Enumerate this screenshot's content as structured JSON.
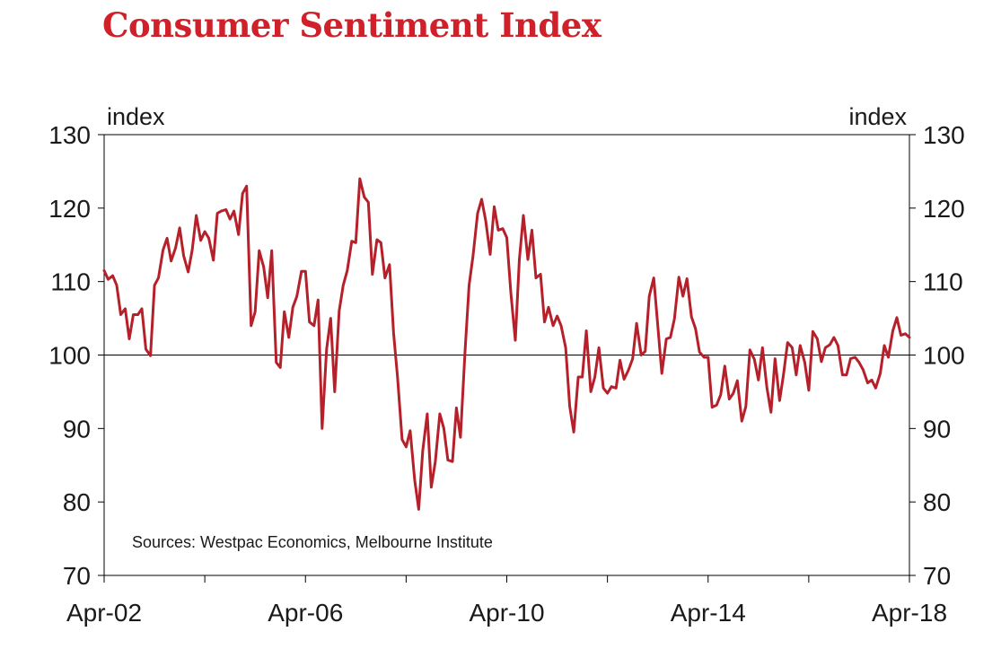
{
  "title": "Consumer Sentiment Index",
  "colors": {
    "title": "#d0202a",
    "line": "#b5202a",
    "axis": "#000000"
  },
  "chart_data": {
    "type": "line",
    "title": "Consumer Sentiment Index",
    "ylabel_left": "index",
    "ylabel_right": "index",
    "ylim": [
      70,
      130
    ],
    "yticks": [
      "130",
      "120",
      "110",
      "100",
      "90",
      "80",
      "70"
    ],
    "ytick_values": [
      130,
      120,
      110,
      100,
      90,
      80,
      70
    ],
    "x_range": [
      2002.25,
      2018.25
    ],
    "xtick_labels": [
      "Apr-02",
      "Apr-06",
      "Apr-10",
      "Apr-14",
      "Apr-18"
    ],
    "xtick_positions": [
      2002.25,
      2006.25,
      2010.25,
      2014.25,
      2018.25
    ],
    "minor_xtick_positions": [
      2004.25,
      2008.25,
      2012.25,
      2016.25
    ],
    "reference_line": 100,
    "annotation": "Sources: Westpac Economics, Melbourne Institute",
    "series": [
      {
        "name": "Consumer Sentiment Index",
        "points": [
          [
            2002.25,
            111.5
          ],
          [
            2002.33,
            110.3
          ],
          [
            2002.42,
            110.8
          ],
          [
            2002.5,
            109.5
          ],
          [
            2002.58,
            105.5
          ],
          [
            2002.67,
            106.3
          ],
          [
            2002.75,
            102.2
          ],
          [
            2002.83,
            105.5
          ],
          [
            2002.92,
            105.5
          ],
          [
            2003.0,
            106.3
          ],
          [
            2003.08,
            100.8
          ],
          [
            2003.17,
            99.9
          ],
          [
            2003.25,
            109.5
          ],
          [
            2003.33,
            110.5
          ],
          [
            2003.42,
            114.3
          ],
          [
            2003.5,
            115.9
          ],
          [
            2003.58,
            112.8
          ],
          [
            2003.67,
            114.6
          ],
          [
            2003.75,
            117.3
          ],
          [
            2003.83,
            113.5
          ],
          [
            2003.92,
            111.3
          ],
          [
            2004.0,
            114.3
          ],
          [
            2004.08,
            119.0
          ],
          [
            2004.17,
            115.6
          ],
          [
            2004.25,
            116.8
          ],
          [
            2004.33,
            115.9
          ],
          [
            2004.42,
            112.9
          ],
          [
            2004.5,
            119.3
          ],
          [
            2004.58,
            119.6
          ],
          [
            2004.67,
            119.8
          ],
          [
            2004.75,
            118.5
          ],
          [
            2004.83,
            119.6
          ],
          [
            2004.92,
            116.4
          ],
          [
            2005.0,
            122.0
          ],
          [
            2005.08,
            123.0
          ],
          [
            2005.17,
            104.0
          ],
          [
            2005.25,
            105.9
          ],
          [
            2005.33,
            114.2
          ],
          [
            2005.42,
            112.0
          ],
          [
            2005.5,
            107.8
          ],
          [
            2005.58,
            114.2
          ],
          [
            2005.67,
            99.0
          ],
          [
            2005.75,
            98.3
          ],
          [
            2005.83,
            105.9
          ],
          [
            2005.92,
            102.4
          ],
          [
            2006.0,
            106.5
          ],
          [
            2006.08,
            108.0
          ],
          [
            2006.17,
            111.4
          ],
          [
            2006.25,
            111.4
          ],
          [
            2006.33,
            104.5
          ],
          [
            2006.42,
            104.0
          ],
          [
            2006.5,
            107.5
          ],
          [
            2006.58,
            90.0
          ],
          [
            2006.67,
            100.8
          ],
          [
            2006.75,
            105.0
          ],
          [
            2006.83,
            95.0
          ],
          [
            2006.92,
            106.0
          ],
          [
            2007.0,
            109.5
          ],
          [
            2007.08,
            111.5
          ],
          [
            2007.17,
            115.5
          ],
          [
            2007.25,
            115.3
          ],
          [
            2007.33,
            124.0
          ],
          [
            2007.42,
            121.5
          ],
          [
            2007.5,
            120.8
          ],
          [
            2007.58,
            111.0
          ],
          [
            2007.67,
            115.7
          ],
          [
            2007.75,
            115.3
          ],
          [
            2007.83,
            110.5
          ],
          [
            2007.92,
            112.3
          ],
          [
            2008.0,
            103.0
          ],
          [
            2008.08,
            97.0
          ],
          [
            2008.17,
            88.5
          ],
          [
            2008.25,
            87.5
          ],
          [
            2008.33,
            89.7
          ],
          [
            2008.42,
            83.0
          ],
          [
            2008.5,
            79.0
          ],
          [
            2008.58,
            87.0
          ],
          [
            2008.67,
            92.0
          ],
          [
            2008.75,
            82.0
          ],
          [
            2008.83,
            85.5
          ],
          [
            2008.92,
            92.0
          ],
          [
            2009.0,
            90.0
          ],
          [
            2009.08,
            85.7
          ],
          [
            2009.17,
            85.5
          ],
          [
            2009.25,
            92.8
          ],
          [
            2009.33,
            88.8
          ],
          [
            2009.42,
            100.5
          ],
          [
            2009.5,
            109.5
          ],
          [
            2009.58,
            113.5
          ],
          [
            2009.67,
            119.3
          ],
          [
            2009.75,
            121.2
          ],
          [
            2009.83,
            118.3
          ],
          [
            2009.92,
            113.7
          ],
          [
            2010.0,
            120.2
          ],
          [
            2010.08,
            117.0
          ],
          [
            2010.17,
            117.2
          ],
          [
            2010.25,
            116.0
          ],
          [
            2010.33,
            108.5
          ],
          [
            2010.42,
            102.0
          ],
          [
            2010.5,
            113.0
          ],
          [
            2010.58,
            119.0
          ],
          [
            2010.67,
            113.0
          ],
          [
            2010.75,
            117.0
          ],
          [
            2010.83,
            110.5
          ],
          [
            2010.92,
            111.0
          ],
          [
            2011.0,
            104.5
          ],
          [
            2011.08,
            106.5
          ],
          [
            2011.17,
            104.0
          ],
          [
            2011.25,
            105.3
          ],
          [
            2011.33,
            104.0
          ],
          [
            2011.42,
            101.0
          ],
          [
            2011.5,
            93.0
          ],
          [
            2011.58,
            89.5
          ],
          [
            2011.67,
            97.0
          ],
          [
            2011.75,
            97.0
          ],
          [
            2011.83,
            103.3
          ],
          [
            2011.92,
            95.0
          ],
          [
            2012.0,
            97.0
          ],
          [
            2012.08,
            101.0
          ],
          [
            2012.17,
            95.5
          ],
          [
            2012.25,
            94.8
          ],
          [
            2012.33,
            95.7
          ],
          [
            2012.42,
            95.5
          ],
          [
            2012.5,
            99.3
          ],
          [
            2012.58,
            96.7
          ],
          [
            2012.67,
            98.0
          ],
          [
            2012.75,
            99.5
          ],
          [
            2012.83,
            104.3
          ],
          [
            2012.92,
            100.0
          ],
          [
            2013.0,
            100.5
          ],
          [
            2013.08,
            108.0
          ],
          [
            2013.17,
            110.5
          ],
          [
            2013.25,
            104.0
          ],
          [
            2013.33,
            97.5
          ],
          [
            2013.42,
            102.2
          ],
          [
            2013.5,
            102.4
          ],
          [
            2013.58,
            104.9
          ],
          [
            2013.67,
            110.6
          ],
          [
            2013.75,
            108.0
          ],
          [
            2013.83,
            110.4
          ],
          [
            2013.92,
            105.2
          ],
          [
            2014.0,
            103.6
          ],
          [
            2014.08,
            100.4
          ],
          [
            2014.17,
            99.7
          ],
          [
            2014.25,
            99.7
          ],
          [
            2014.33,
            92.9
          ],
          [
            2014.42,
            93.2
          ],
          [
            2014.5,
            94.6
          ],
          [
            2014.58,
            98.5
          ],
          [
            2014.67,
            94.0
          ],
          [
            2014.75,
            94.8
          ],
          [
            2014.83,
            96.5
          ],
          [
            2014.92,
            91.0
          ],
          [
            2015.0,
            93.0
          ],
          [
            2015.08,
            100.7
          ],
          [
            2015.17,
            99.4
          ],
          [
            2015.25,
            96.6
          ],
          [
            2015.33,
            101.0
          ],
          [
            2015.42,
            95.5
          ],
          [
            2015.5,
            92.2
          ],
          [
            2015.58,
            99.5
          ],
          [
            2015.67,
            93.8
          ],
          [
            2015.75,
            97.4
          ],
          [
            2015.83,
            101.7
          ],
          [
            2015.92,
            101.0
          ],
          [
            2016.0,
            97.3
          ],
          [
            2016.08,
            101.3
          ],
          [
            2016.17,
            99.0
          ],
          [
            2016.25,
            95.2
          ],
          [
            2016.33,
            103.2
          ],
          [
            2016.42,
            102.2
          ],
          [
            2016.5,
            99.1
          ],
          [
            2016.58,
            101.0
          ],
          [
            2016.67,
            101.4
          ],
          [
            2016.75,
            102.4
          ],
          [
            2016.83,
            101.3
          ],
          [
            2016.92,
            97.3
          ],
          [
            2017.0,
            97.3
          ],
          [
            2017.08,
            99.5
          ],
          [
            2017.17,
            99.7
          ],
          [
            2017.25,
            99.0
          ],
          [
            2017.33,
            98.0
          ],
          [
            2017.42,
            96.2
          ],
          [
            2017.5,
            96.6
          ],
          [
            2017.58,
            95.5
          ],
          [
            2017.67,
            97.5
          ],
          [
            2017.75,
            101.3
          ],
          [
            2017.83,
            99.7
          ],
          [
            2017.92,
            103.3
          ],
          [
            2018.0,
            105.1
          ],
          [
            2018.08,
            102.7
          ],
          [
            2018.17,
            102.9
          ],
          [
            2018.25,
            102.4
          ]
        ]
      }
    ]
  }
}
